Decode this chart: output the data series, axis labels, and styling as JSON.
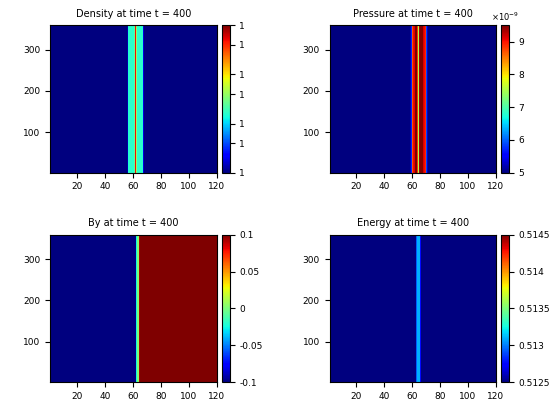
{
  "title1": "Density at time t = 400",
  "title2": "Pressure at time t = 400",
  "title3": "By at time t = 400",
  "title4": "Energy at time t = 400",
  "nx": 120,
  "ny": 360,
  "density_cmin": 1.0,
  "density_cmax": 1.015,
  "pressure_cmin": 5e-09,
  "pressure_cmax": 9.5e-09,
  "by_cmin": -0.1,
  "by_cmax": 0.1,
  "energy_cmin": 0.5125,
  "energy_cmax": 0.5145,
  "xticks": [
    20,
    40,
    60,
    80,
    100,
    120
  ],
  "yticks": [
    100,
    200,
    300
  ],
  "density_cb_ticks": [
    1.0,
    1.003,
    1.005,
    1.008,
    1.01,
    1.013,
    1.015
  ],
  "density_cb_labels": [
    "1",
    "1",
    "1",
    "1",
    "1",
    "1",
    "1"
  ],
  "pressure_cb_ticks": [
    5e-09,
    6e-09,
    7e-09,
    8e-09,
    9e-09
  ],
  "pressure_cb_labels": [
    "5",
    "6",
    "7",
    "8",
    "9"
  ],
  "by_cb_ticks": [
    -0.1,
    -0.05,
    0,
    0.05,
    0.1
  ],
  "by_cb_labels": [
    "-0.1",
    "-0.05",
    "0",
    "0.05",
    "0.1"
  ],
  "energy_cb_ticks": [
    0.5125,
    0.513,
    0.5135,
    0.514,
    0.5145
  ],
  "energy_cb_labels": [
    "0.5125",
    "0.513",
    "0.5135",
    "0.514",
    "0.5145"
  ],
  "figsize": [
    5.6,
    4.2
  ],
  "dpi": 100
}
